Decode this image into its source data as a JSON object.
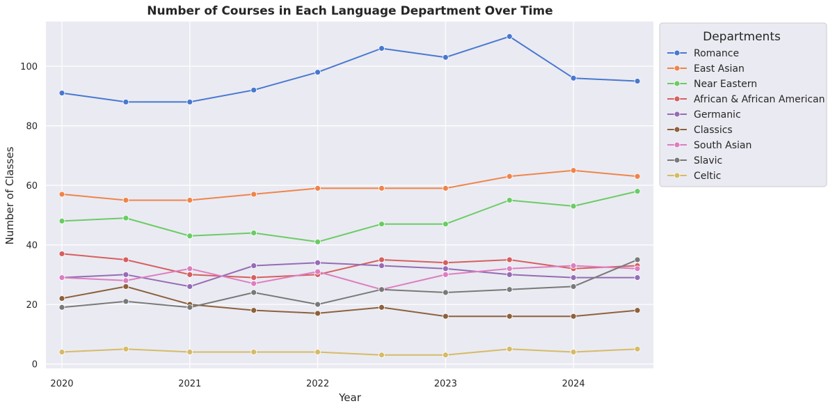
{
  "chart_data": {
    "type": "line",
    "title": "Number of Courses in Each Language Department Over Time",
    "xlabel": "Year",
    "ylabel": "Number of Classes",
    "x": [
      2020.0,
      2020.5,
      2021.0,
      2021.5,
      2022.0,
      2022.5,
      2023.0,
      2023.5,
      2024.0,
      2024.5
    ],
    "x_ticks": [
      2020,
      2021,
      2022,
      2023,
      2024
    ],
    "y_ticks": [
      0,
      20,
      40,
      60,
      80,
      100
    ],
    "xlim": [
      2019.875,
      2024.625
    ],
    "ylim": [
      -1.5,
      115
    ],
    "grid": true,
    "legend": {
      "title": "Departments",
      "placement": "outside-upper-right"
    },
    "series": [
      {
        "name": "Romance",
        "color": "#4878d0",
        "values": [
          91,
          88,
          88,
          92,
          98,
          106,
          103,
          110,
          96,
          95
        ]
      },
      {
        "name": "East Asian",
        "color": "#ee854a",
        "values": [
          57,
          55,
          55,
          57,
          59,
          59,
          59,
          63,
          65,
          63
        ]
      },
      {
        "name": "Near Eastern",
        "color": "#6acc64",
        "values": [
          48,
          49,
          43,
          44,
          41,
          47,
          47,
          55,
          53,
          58
        ]
      },
      {
        "name": "African & African American",
        "color": "#d65f5f",
        "values": [
          37,
          35,
          30,
          29,
          30,
          35,
          34,
          35,
          32,
          33
        ]
      },
      {
        "name": "Germanic",
        "color": "#956cb4",
        "values": [
          29,
          30,
          26,
          33,
          34,
          33,
          32,
          30,
          29,
          29
        ]
      },
      {
        "name": "Classics",
        "color": "#8c613c",
        "values": [
          22,
          26,
          20,
          18,
          17,
          19,
          16,
          16,
          16,
          18
        ]
      },
      {
        "name": "South Asian",
        "color": "#dc7ec0",
        "values": [
          29,
          28,
          32,
          27,
          31,
          25,
          30,
          32,
          33,
          32
        ]
      },
      {
        "name": "Slavic",
        "color": "#797979",
        "values": [
          19,
          21,
          19,
          24,
          20,
          25,
          24,
          25,
          26,
          35
        ]
      },
      {
        "name": "Celtic",
        "color": "#d5bb67",
        "values": [
          4,
          5,
          4,
          4,
          4,
          3,
          3,
          5,
          4,
          5
        ]
      }
    ]
  }
}
